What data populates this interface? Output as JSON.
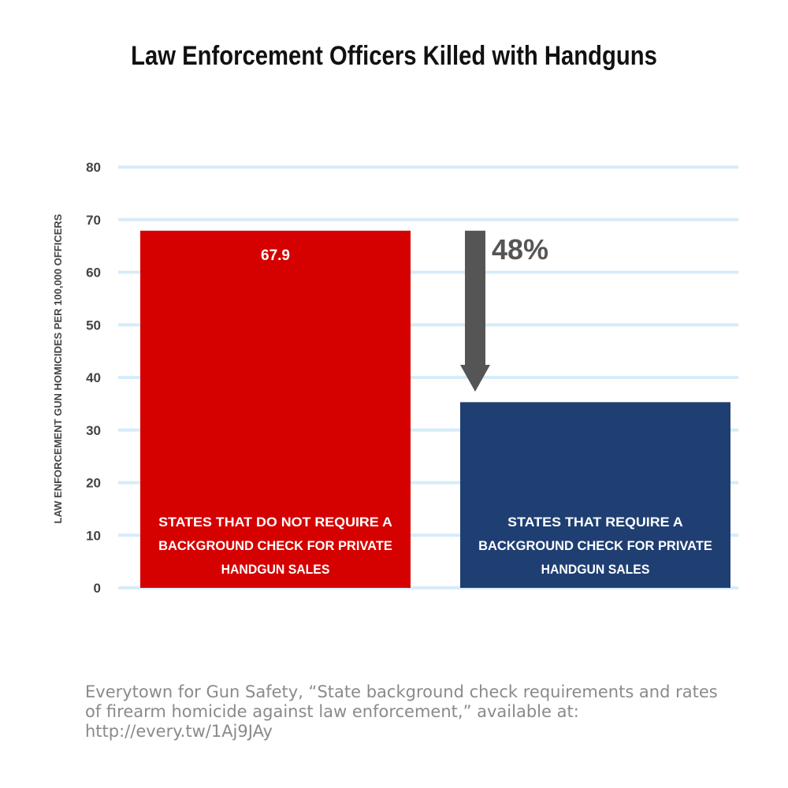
{
  "chart_data": {
    "type": "bar",
    "title": "Law Enforcement Officers Killed with Handguns",
    "ylabel": "LAW ENFORCEMENT GUN HOMICIDES PER 100,000 OFFICERS",
    "xlabel": "",
    "ylim": [
      0,
      80
    ],
    "yticks": [
      0,
      10,
      20,
      30,
      40,
      50,
      60,
      70,
      80
    ],
    "grid": true,
    "categories": [
      [
        "STATES THAT DO NOT REQUIRE A",
        "BACKGROUND CHECK FOR PRIVATE",
        "HANDGUN SALES"
      ],
      [
        "STATES THAT REQUIRE A",
        "BACKGROUND CHECK FOR PRIVATE",
        "HANDGUN SALES"
      ]
    ],
    "values": [
      67.9,
      35.3
    ],
    "data_labels": [
      "67.9",
      null
    ],
    "colors": [
      "#d50000",
      "#1f3f73"
    ],
    "grid_color": "#d6ecf9",
    "annotation": {
      "text": "48%",
      "direction": "down",
      "from_value": 67.9,
      "to_value": 35.3,
      "color": "#555555"
    }
  },
  "source": {
    "lines": [
      "Everytown for Gun Safety, “State background check requirements and rates",
      "of firearm homicide against law enforcement,” available at:",
      "http://every.tw/1Aj9JAy"
    ]
  }
}
